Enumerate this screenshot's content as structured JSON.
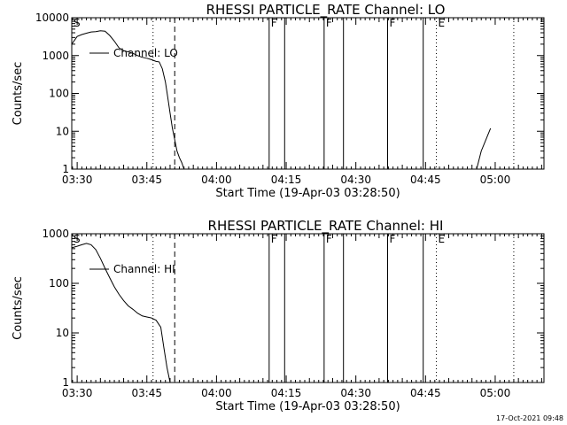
{
  "timestamp_label": "17-Oct-2021 09:48",
  "chart_data": [
    {
      "type": "line",
      "title": "RHESSI PARTICLE_RATE Channel: LO",
      "xlabel": "Start Time (19-Apr-03 03:28:50)",
      "ylabel": "Counts/sec",
      "xlim": [
        "03:28:50",
        "05:10:30"
      ],
      "ylim": [
        1,
        10000
      ],
      "y_scale": "log",
      "x_ticks": [
        "03:30",
        "03:45",
        "04:00",
        "04:15",
        "04:30",
        "04:45",
        "05:00"
      ],
      "y_ticks": [
        "1",
        "10",
        "100",
        "1000",
        "10000"
      ],
      "legend_location": "upper-left",
      "series": [
        {
          "name": "Channel: LO",
          "color": "#000000",
          "segments": [
            {
              "x": [
                "03:28:50",
                "03:30:00",
                "03:31:00",
                "03:32:00",
                "03:33:00",
                "03:34:00",
                "03:35:00",
                "03:36:00",
                "03:37:00",
                "03:38:00",
                "03:39:00",
                "03:40:00",
                "03:41:00",
                "03:42:00",
                "03:43:00",
                "03:44:00",
                "03:45:00",
                "03:46:00",
                "03:47:00",
                "03:47:40",
                "03:48:20",
                "03:49:00",
                "03:49:30",
                "03:50:00",
                "03:50:30",
                "03:51:00",
                "03:51:30",
                "03:52:00",
                "03:52:30",
                "03:53:00"
              ],
              "y": [
                2000,
                3200,
                3600,
                3900,
                4200,
                4300,
                4500,
                4400,
                3400,
                2400,
                1600,
                1350,
                1250,
                1150,
                1000,
                900,
                850,
                780,
                700,
                680,
                450,
                200,
                80,
                30,
                12,
                6,
                3,
                2,
                1.5,
                1
              ]
            },
            {
              "x": [
                "04:56:00",
                "04:57:00",
                "04:58:00",
                "04:59:00"
              ],
              "y": [
                1,
                3,
                6,
                12
              ]
            }
          ]
        }
      ],
      "markers": [
        {
          "label": "S",
          "x": "03:28:50",
          "style": "none"
        },
        {
          "label": "",
          "x": "03:46:20",
          "style": "dotted"
        },
        {
          "label": "",
          "x": "03:51:00",
          "style": "dashed"
        },
        {
          "label": "F",
          "x": "04:11:20",
          "style": "solid"
        },
        {
          "label": "",
          "x": "04:14:40",
          "style": "solid"
        },
        {
          "label": "F",
          "x": "04:23:10",
          "style": "solid"
        },
        {
          "label": "",
          "x": "04:27:20",
          "style": "solid"
        },
        {
          "label": "F",
          "x": "04:36:50",
          "style": "solid"
        },
        {
          "label": "",
          "x": "04:44:30",
          "style": "solid"
        },
        {
          "label": "E",
          "x": "04:47:20",
          "style": "dotted"
        },
        {
          "label": "",
          "x": "05:04:00",
          "style": "dotted"
        }
      ]
    },
    {
      "type": "line",
      "title": "RHESSI PARTICLE_RATE Channel: HI",
      "xlabel": "Start Time (19-Apr-03 03:28:50)",
      "ylabel": "Counts/sec",
      "xlim": [
        "03:28:50",
        "05:10:30"
      ],
      "ylim": [
        1,
        1000
      ],
      "y_scale": "log",
      "x_ticks": [
        "03:30",
        "03:45",
        "04:00",
        "04:15",
        "04:30",
        "04:45",
        "05:00"
      ],
      "y_ticks": [
        "1",
        "10",
        "100",
        "1000"
      ],
      "legend_location": "upper-left",
      "series": [
        {
          "name": "Channel: HI",
          "color": "#000000",
          "segments": [
            {
              "x": [
                "03:28:50",
                "03:30:00",
                "03:31:00",
                "03:32:00",
                "03:33:00",
                "03:34:00",
                "03:35:00",
                "03:36:00",
                "03:37:00",
                "03:38:00",
                "03:39:00",
                "03:40:00",
                "03:41:00",
                "03:42:00",
                "03:43:00",
                "03:44:00",
                "03:45:00",
                "03:46:00",
                "03:47:00",
                "03:48:00",
                "03:48:40",
                "03:49:20",
                "03:50:00"
              ],
              "y": [
                520,
                560,
                600,
                640,
                600,
                480,
                320,
                200,
                130,
                85,
                60,
                45,
                35,
                30,
                25,
                22,
                21,
                20,
                18,
                13,
                5,
                2,
                1
              ]
            }
          ]
        }
      ],
      "markers": [
        {
          "label": "S",
          "x": "03:28:50",
          "style": "none"
        },
        {
          "label": "",
          "x": "03:46:20",
          "style": "dotted"
        },
        {
          "label": "",
          "x": "03:51:00",
          "style": "dashed"
        },
        {
          "label": "F",
          "x": "04:11:20",
          "style": "solid"
        },
        {
          "label": "",
          "x": "04:14:40",
          "style": "solid"
        },
        {
          "label": "F",
          "x": "04:23:10",
          "style": "solid"
        },
        {
          "label": "",
          "x": "04:27:20",
          "style": "solid"
        },
        {
          "label": "F",
          "x": "04:36:50",
          "style": "solid"
        },
        {
          "label": "",
          "x": "04:44:30",
          "style": "solid"
        },
        {
          "label": "E",
          "x": "04:47:20",
          "style": "dotted"
        },
        {
          "label": "",
          "x": "05:04:00",
          "style": "dotted"
        }
      ]
    }
  ]
}
